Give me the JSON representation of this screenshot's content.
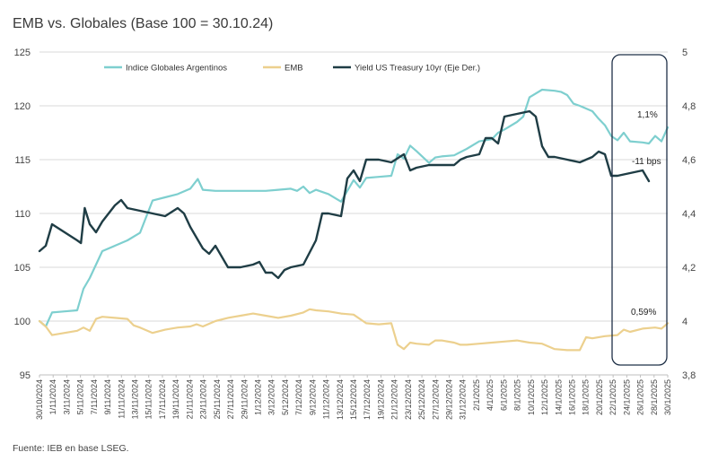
{
  "title": "EMB vs. Globales (Base 100 = 30.10.24)",
  "source": "Fuente: IEB en base LSEG.",
  "annotations": {
    "globales_change": "1,1%",
    "yield_change": "-11 bps",
    "emb_change": "0,59%"
  },
  "colors": {
    "globales": "#7ecfcf",
    "emb": "#ecd08e",
    "yield": "#1f3d45",
    "grid": "#d9d9d9",
    "box": "#1f3047"
  },
  "chart_data": {
    "type": "line",
    "title": "EMB vs. Globales (Base 100 = 30.10.24)",
    "ylim_left": [
      95,
      125
    ],
    "ylim_right": [
      3.8,
      5.0
    ],
    "yticks_left": [
      "95",
      "100",
      "105",
      "110",
      "115",
      "120",
      "125"
    ],
    "yticks_right": [
      "3,8",
      "4",
      "4,2",
      "4,4",
      "4,6",
      "4,8",
      "5"
    ],
    "x_tick_labels": [
      "30/10/2024",
      "1/11/2024",
      "3/11/2024",
      "5/11/2024",
      "7/11/2024",
      "9/11/2024",
      "11/11/2024",
      "13/11/2024",
      "15/11/2024",
      "17/11/2024",
      "19/11/2024",
      "21/11/2024",
      "23/11/2024",
      "25/11/2024",
      "27/11/2024",
      "29/11/2024",
      "1/12/2024",
      "3/12/2024",
      "5/12/2024",
      "7/12/2024",
      "9/12/2024",
      "11/12/2024",
      "13/12/2024",
      "15/12/2024",
      "17/12/2024",
      "19/12/2024",
      "21/12/2024",
      "23/12/2024",
      "25/12/2024",
      "27/12/2024",
      "29/12/2024",
      "31/12/2024",
      "2/1/2025",
      "4/1/2025",
      "6/1/2025",
      "8/1/2025",
      "10/1/2025",
      "12/1/2025",
      "14/1/2025",
      "16/1/2025",
      "18/1/2025",
      "20/1/2025",
      "22/1/2025",
      "24/1/2025",
      "26/1/2025",
      "28/1/2025",
      "30/1/2025"
    ],
    "series": [
      {
        "name": "Indice Globales Argentinos",
        "axis": "left",
        "points": [
          [
            0,
            100.0
          ],
          [
            0.5,
            99.5
          ],
          [
            1,
            100.8
          ],
          [
            2,
            100.9
          ],
          [
            3,
            101.0
          ],
          [
            3.5,
            103.0
          ],
          [
            4,
            104.0
          ],
          [
            5,
            106.5
          ],
          [
            6,
            107.0
          ],
          [
            7,
            107.5
          ],
          [
            8,
            108.2
          ],
          [
            9,
            111.2
          ],
          [
            10,
            111.5
          ],
          [
            11,
            111.8
          ],
          [
            12,
            112.3
          ],
          [
            12.6,
            113.2
          ],
          [
            13,
            112.2
          ],
          [
            14,
            112.1
          ],
          [
            15,
            112.1
          ],
          [
            16,
            112.1
          ],
          [
            17,
            112.1
          ],
          [
            18,
            112.1
          ],
          [
            19,
            112.2
          ],
          [
            20,
            112.3
          ],
          [
            20.5,
            112.1
          ],
          [
            21,
            112.5
          ],
          [
            21.5,
            111.9
          ],
          [
            22,
            112.2
          ],
          [
            23,
            111.8
          ],
          [
            24,
            111.1
          ],
          [
            25,
            113.1
          ],
          [
            25.5,
            112.4
          ],
          [
            26,
            113.3
          ],
          [
            27,
            113.4
          ],
          [
            28,
            113.5
          ],
          [
            28.5,
            115.5
          ],
          [
            29,
            115.1
          ],
          [
            29.5,
            116.3
          ],
          [
            30,
            115.8
          ],
          [
            31,
            114.7
          ],
          [
            31.5,
            115.2
          ],
          [
            32,
            115.3
          ],
          [
            33,
            115.4
          ],
          [
            34,
            116.0
          ],
          [
            35,
            116.7
          ],
          [
            36,
            116.9
          ],
          [
            36.5,
            117.5
          ],
          [
            37,
            117.8
          ],
          [
            38,
            118.5
          ],
          [
            38.5,
            119.0
          ],
          [
            39,
            120.8
          ],
          [
            40,
            121.5
          ],
          [
            41,
            121.4
          ],
          [
            41.5,
            121.3
          ],
          [
            42,
            121.0
          ],
          [
            42.5,
            120.2
          ],
          [
            43,
            120.0
          ],
          [
            44,
            119.5
          ],
          [
            44.5,
            118.8
          ],
          [
            45,
            118.2
          ],
          [
            45.5,
            117.2
          ],
          [
            46,
            116.8
          ],
          [
            46.5,
            117.5
          ],
          [
            47,
            116.7
          ],
          [
            48,
            116.6
          ],
          [
            48.5,
            116.5
          ],
          [
            49,
            117.2
          ],
          [
            49.5,
            116.7
          ],
          [
            50,
            118.0
          ]
        ]
      },
      {
        "name": "EMB",
        "axis": "left",
        "points": [
          [
            0,
            100.0
          ],
          [
            0.5,
            99.5
          ],
          [
            1,
            98.7
          ],
          [
            2,
            98.9
          ],
          [
            3,
            99.1
          ],
          [
            3.5,
            99.4
          ],
          [
            4,
            99.1
          ],
          [
            4.5,
            100.2
          ],
          [
            5,
            100.4
          ],
          [
            6,
            100.3
          ],
          [
            7,
            100.2
          ],
          [
            7.5,
            99.6
          ],
          [
            8,
            99.4
          ],
          [
            9,
            98.9
          ],
          [
            10,
            99.2
          ],
          [
            11,
            99.4
          ],
          [
            12,
            99.5
          ],
          [
            12.5,
            99.7
          ],
          [
            13,
            99.5
          ],
          [
            14,
            100.0
          ],
          [
            15,
            100.3
          ],
          [
            15.5,
            100.4
          ],
          [
            16,
            100.5
          ],
          [
            17,
            100.7
          ],
          [
            18,
            100.5
          ],
          [
            19,
            100.3
          ],
          [
            20,
            100.5
          ],
          [
            21,
            100.8
          ],
          [
            21.5,
            101.1
          ],
          [
            22,
            101.0
          ],
          [
            23,
            100.9
          ],
          [
            24,
            100.7
          ],
          [
            25,
            100.6
          ],
          [
            26,
            99.8
          ],
          [
            27,
            99.7
          ],
          [
            28,
            99.8
          ],
          [
            28.5,
            97.8
          ],
          [
            29,
            97.4
          ],
          [
            29.5,
            98.0
          ],
          [
            30,
            97.9
          ],
          [
            31,
            97.8
          ],
          [
            31.5,
            98.2
          ],
          [
            32,
            98.2
          ],
          [
            33,
            98.0
          ],
          [
            33.5,
            97.8
          ],
          [
            34,
            97.8
          ],
          [
            35,
            97.9
          ],
          [
            36,
            98.0
          ],
          [
            37,
            98.1
          ],
          [
            38,
            98.2
          ],
          [
            39,
            98.0
          ],
          [
            40,
            97.9
          ],
          [
            41,
            97.4
          ],
          [
            42,
            97.3
          ],
          [
            43,
            97.3
          ],
          [
            43.5,
            98.5
          ],
          [
            44,
            98.4
          ],
          [
            45,
            98.6
          ],
          [
            46,
            98.7
          ],
          [
            46.5,
            99.2
          ],
          [
            47,
            99.0
          ],
          [
            48,
            99.3
          ],
          [
            49,
            99.4
          ],
          [
            49.5,
            99.3
          ],
          [
            50,
            99.8
          ]
        ]
      },
      {
        "name": "Yield US Treasury 10yr (Eje Der.)",
        "axis": "right",
        "points": [
          [
            0,
            4.26
          ],
          [
            0.5,
            4.28
          ],
          [
            1,
            4.36
          ],
          [
            2,
            4.33
          ],
          [
            3,
            4.3
          ],
          [
            3.3,
            4.29
          ],
          [
            3.6,
            4.42
          ],
          [
            4,
            4.36
          ],
          [
            4.5,
            4.33
          ],
          [
            5,
            4.37
          ],
          [
            6,
            4.43
          ],
          [
            6.5,
            4.45
          ],
          [
            7,
            4.42
          ],
          [
            8,
            4.41
          ],
          [
            9,
            4.4
          ],
          [
            10,
            4.39
          ],
          [
            11,
            4.42
          ],
          [
            11.5,
            4.4
          ],
          [
            12,
            4.35
          ],
          [
            13,
            4.27
          ],
          [
            13.5,
            4.25
          ],
          [
            14,
            4.28
          ],
          [
            15,
            4.2
          ],
          [
            16,
            4.2
          ],
          [
            17,
            4.21
          ],
          [
            17.5,
            4.22
          ],
          [
            18,
            4.18
          ],
          [
            18.5,
            4.18
          ],
          [
            19,
            4.16
          ],
          [
            19.5,
            4.19
          ],
          [
            20,
            4.2
          ],
          [
            21,
            4.21
          ],
          [
            22,
            4.3
          ],
          [
            22.5,
            4.4
          ],
          [
            23,
            4.4
          ],
          [
            24,
            4.39
          ],
          [
            24.5,
            4.53
          ],
          [
            25,
            4.56
          ],
          [
            25.5,
            4.52
          ],
          [
            26,
            4.6
          ],
          [
            27,
            4.6
          ],
          [
            28,
            4.59
          ],
          [
            29,
            4.62
          ],
          [
            29.5,
            4.56
          ],
          [
            30,
            4.57
          ],
          [
            31,
            4.58
          ],
          [
            32,
            4.58
          ],
          [
            33,
            4.58
          ],
          [
            33.5,
            4.6
          ],
          [
            34,
            4.61
          ],
          [
            35,
            4.62
          ],
          [
            35.5,
            4.68
          ],
          [
            36,
            4.68
          ],
          [
            36.5,
            4.66
          ],
          [
            37,
            4.76
          ],
          [
            38,
            4.77
          ],
          [
            39,
            4.78
          ],
          [
            39.5,
            4.76
          ],
          [
            40,
            4.65
          ],
          [
            40.5,
            4.61
          ],
          [
            41,
            4.61
          ],
          [
            42,
            4.6
          ],
          [
            43,
            4.59
          ],
          [
            44,
            4.61
          ],
          [
            44.5,
            4.63
          ],
          [
            45,
            4.62
          ],
          [
            45.5,
            4.54
          ],
          [
            46,
            4.54
          ],
          [
            47,
            4.55
          ],
          [
            48,
            4.56
          ],
          [
            48.5,
            4.52
          ]
        ]
      }
    ],
    "legend": [
      "Indice Globales Argentinos",
      "EMB",
      "Yield US Treasury 10yr (Eje Der.)"
    ],
    "legend_position": "top-center",
    "grid": "horizontal"
  }
}
